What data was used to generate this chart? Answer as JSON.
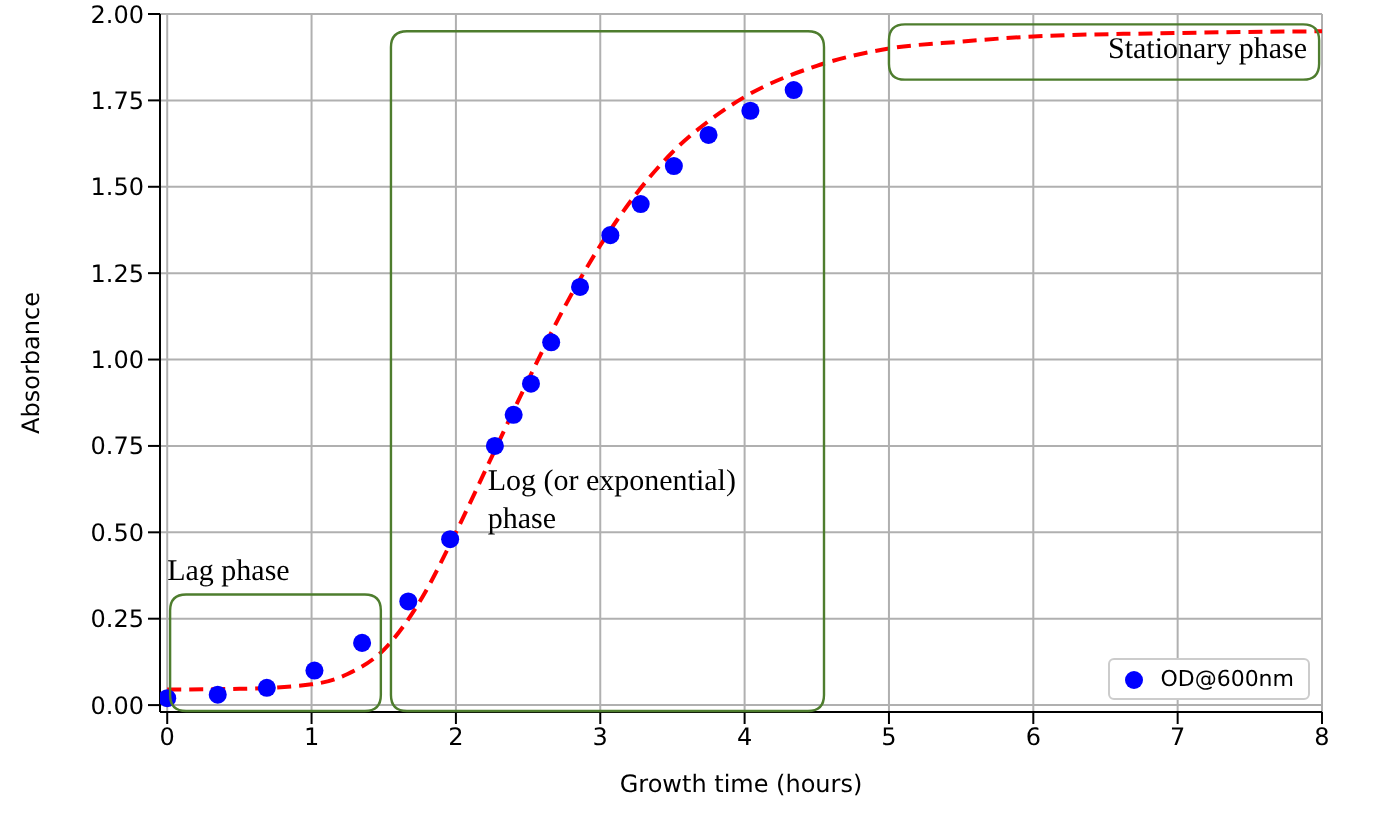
{
  "chart_data": {
    "type": "scatter",
    "xlabel": "Growth time (hours)",
    "ylabel": "Absorbance",
    "xlim": [
      -0.05,
      8
    ],
    "xticks": [
      0,
      1,
      2,
      3,
      4,
      5,
      6,
      7,
      8
    ],
    "ylim": [
      -0.02,
      2
    ],
    "yticks": [
      {
        "value": 0,
        "label": "0.00"
      },
      {
        "value": 0.25,
        "label": "0.25"
      },
      {
        "value": 0.5,
        "label": "0.50"
      },
      {
        "value": 0.75,
        "label": "0.75"
      },
      {
        "value": 1,
        "label": "1.00"
      },
      {
        "value": 1.25,
        "label": "1.25"
      },
      {
        "value": 1.5,
        "label": "1.50"
      },
      {
        "value": 1.75,
        "label": "1.75"
      },
      {
        "value": 2,
        "label": "2.00"
      }
    ],
    "grid": true,
    "legend": "bottom right",
    "marker": "circle",
    "series": [
      {
        "name": "OD@600nm",
        "color": "#0000ff",
        "x": [
          0,
          0.35,
          0.69,
          1.02,
          1.35,
          1.67,
          1.96,
          2.27,
          2.4,
          2.52,
          2.66,
          2.86,
          3.07,
          3.28,
          3.51,
          3.75,
          4.04,
          4.34
        ],
        "values": [
          0.02,
          0.03,
          0.05,
          0.1,
          0.18,
          0.3,
          0.48,
          0.75,
          0.84,
          0.93,
          1.05,
          1.21,
          1.36,
          1.45,
          1.56,
          1.65,
          1.72,
          1.78
        ]
      },
      {
        "type": "line",
        "color": "#ff0000",
        "line_style": "dashed",
        "marker": "none",
        "x": [
          0,
          0.5,
          1,
          1.25,
          1.5,
          1.75,
          2,
          2.25,
          2.5,
          2.75,
          3,
          3.25,
          3.5,
          3.75,
          4,
          4.5,
          5,
          5.5,
          6,
          7,
          8
        ],
        "values": [
          0.045,
          0.047,
          0.06,
          0.09,
          0.16,
          0.3,
          0.5,
          0.72,
          0.94,
          1.15,
          1.33,
          1.48,
          1.6,
          1.69,
          1.76,
          1.85,
          1.9,
          1.92,
          1.935,
          1.945,
          1.95
        ]
      }
    ],
    "annotations": [
      "Lag phase",
      "Log (or exponential) phase",
      "Stationary phase"
    ]
  }
}
